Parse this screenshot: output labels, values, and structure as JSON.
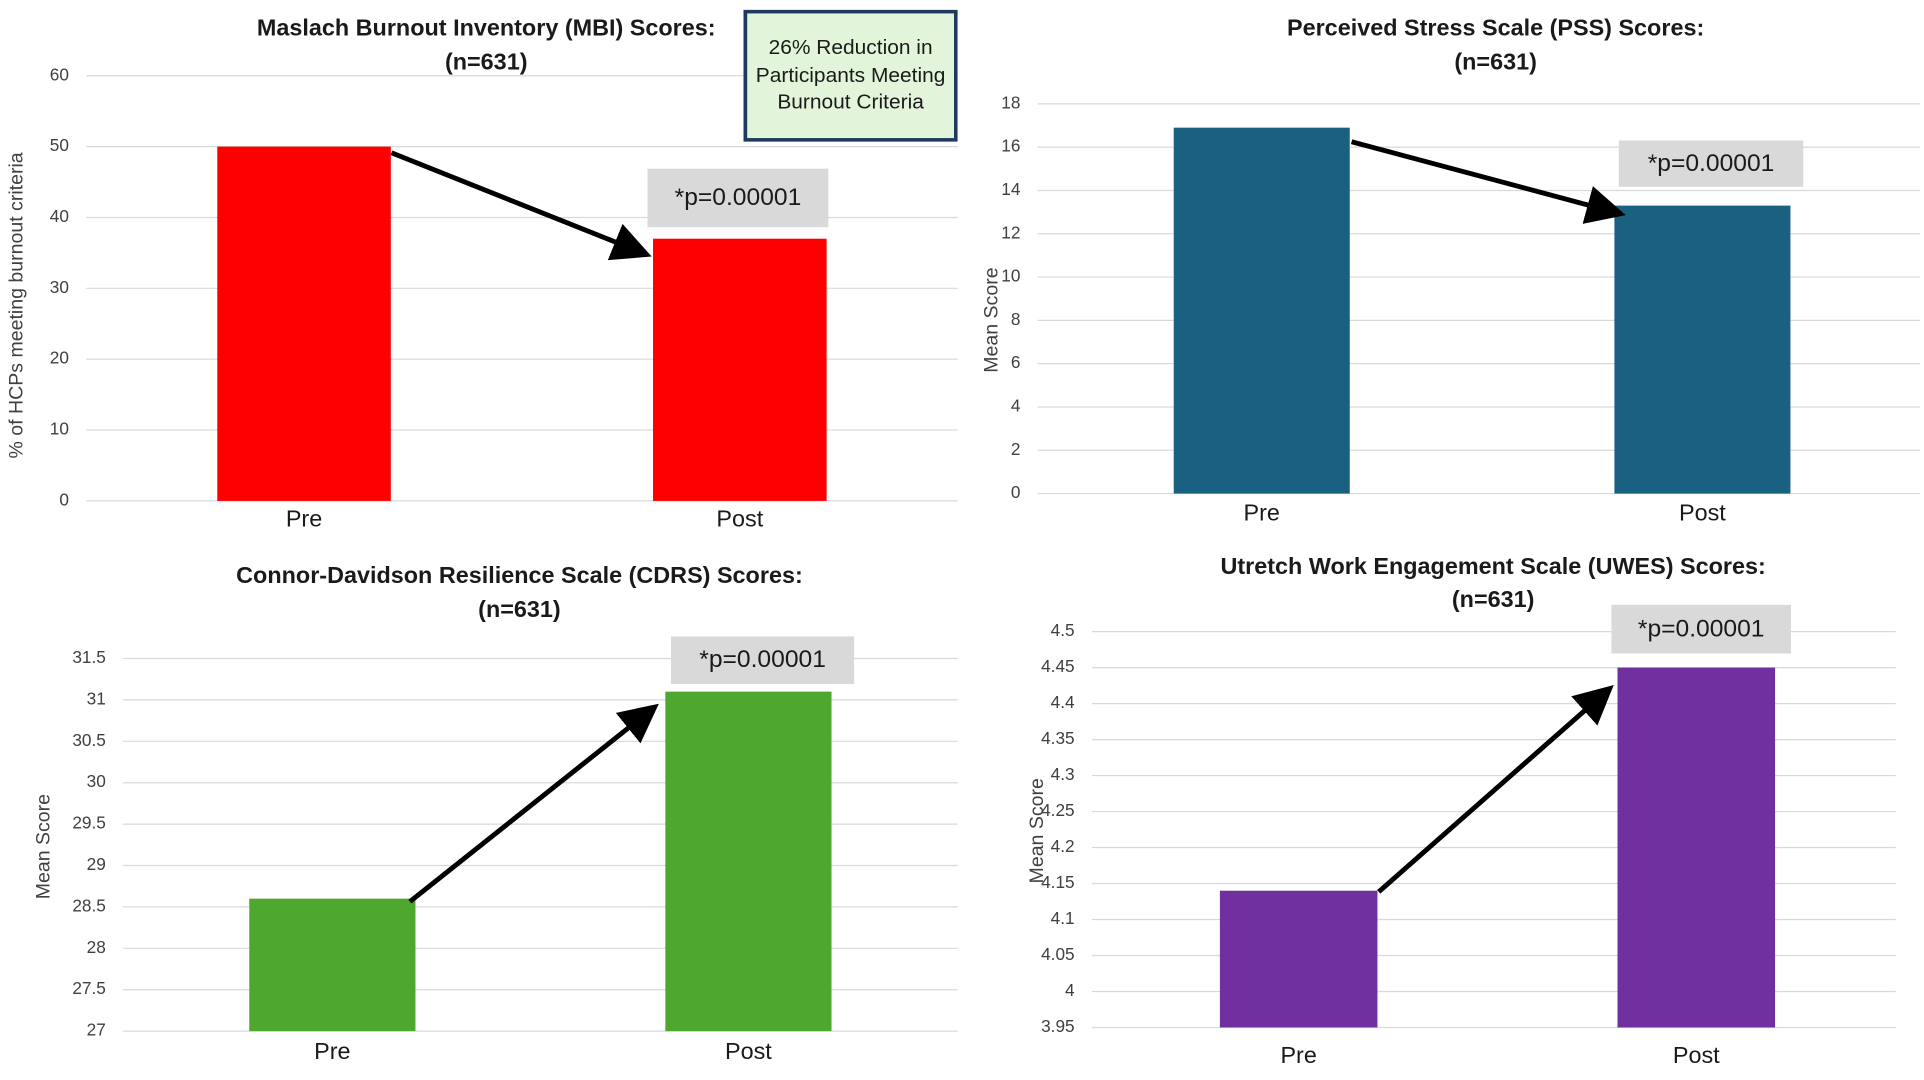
{
  "chart_data": [
    {
      "type": "bar",
      "title": "Maslach Burnout Inventory (MBI) Scores:",
      "subtitle": "(n=631)",
      "y_label": "% of HCPs meeting burnout criteria",
      "categories": [
        "Pre",
        "Post"
      ],
      "values": [
        50,
        37
      ],
      "color": "#ff0000",
      "ylim": [
        0,
        60
      ],
      "yticks": [
        0,
        10,
        20,
        30,
        40,
        50,
        60
      ],
      "grid": true,
      "annotation": "*p=0.00001",
      "callout": "26% Reduction in Participants Meeting Burnout Criteria"
    },
    {
      "type": "bar",
      "title": "Perceived Stress Scale (PSS) Scores:",
      "subtitle": "(n=631)",
      "y_label": "Mean Score",
      "categories": [
        "Pre",
        "Post"
      ],
      "values": [
        16.9,
        13.3
      ],
      "color": "#1a6081",
      "ylim": [
        0,
        18
      ],
      "yticks": [
        0,
        2,
        4,
        6,
        8,
        10,
        12,
        14,
        16,
        18
      ],
      "grid": true,
      "annotation": "*p=0.00001"
    },
    {
      "type": "bar",
      "title": "Connor-Davidson Resilience Scale (CDRS) Scores:",
      "subtitle": "(n=631)",
      "y_label": "Mean Score",
      "categories": [
        "Pre",
        "Post"
      ],
      "values": [
        28.6,
        31.1
      ],
      "color": "#4ea72e",
      "ylim": [
        27,
        31.5
      ],
      "yticks": [
        27,
        27.5,
        28,
        28.5,
        29,
        29.5,
        30,
        30.5,
        31,
        31.5
      ],
      "grid": true,
      "annotation": "*p=0.00001"
    },
    {
      "type": "bar",
      "title": "Utretch Work Engagement Scale (UWES) Scores:",
      "subtitle": "(n=631)",
      "y_label": "Mean Score",
      "categories": [
        "Pre",
        "Post"
      ],
      "values": [
        4.14,
        4.45
      ],
      "color": "#7030a0",
      "ylim": [
        3.95,
        4.5
      ],
      "yticks": [
        3.95,
        4,
        4.05,
        4.1,
        4.15,
        4.2,
        4.25,
        4.3,
        4.35,
        4.4,
        4.45,
        4.5
      ],
      "grid": true,
      "annotation": "*p=0.00001"
    }
  ]
}
